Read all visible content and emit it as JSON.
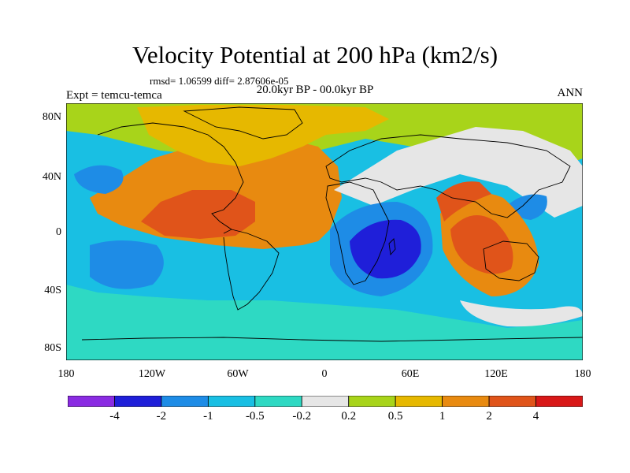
{
  "title": "Velocity Potential at 200 hPa (km2/s)",
  "stats": "rmsd= 1.06599 diff= 2.87606e-05",
  "period": "20.0kyr BP - 00.0kyr BP",
  "experiment": "Expt = temcu-temca",
  "season": "ANN",
  "lat_ticks": [
    "80N",
    "40N",
    "0",
    "40S",
    "80S"
  ],
  "lon_ticks": [
    "180",
    "120W",
    "60W",
    "0",
    "60E",
    "120E",
    "180"
  ],
  "colorbar": {
    "colors": [
      "#8a2be2",
      "#1f1fd9",
      "#1e8ce6",
      "#19bfe3",
      "#2ed9c3",
      "#e6e6e6",
      "#a8d41a",
      "#e6b800",
      "#e88a10",
      "#e0541a",
      "#d81818"
    ],
    "labels": [
      "-4",
      "-2",
      "-1",
      "-0.5",
      "-0.2",
      "0.2",
      "0.5",
      "1",
      "2",
      "4"
    ]
  },
  "map": {
    "background": "#19bfe3",
    "regions": [
      {
        "name": "region-north-lightgreen",
        "color": "#a8d41a"
      },
      {
        "name": "region-atlantic-orange",
        "color": "#e88a10"
      },
      {
        "name": "region-central-america-red",
        "color": "#e0541a"
      },
      {
        "name": "region-north-yellow",
        "color": "#e6b800"
      },
      {
        "name": "region-asia-gray",
        "color": "#e6e6e6"
      },
      {
        "name": "region-pacific-blue",
        "color": "#1e8ce6"
      },
      {
        "name": "region-indian-ocean-dark-blue",
        "color": "#1f1fd9"
      },
      {
        "name": "region-maritime-continent-red",
        "color": "#e0541a"
      },
      {
        "name": "region-south-cyan",
        "color": "#2ed9c3"
      }
    ]
  }
}
